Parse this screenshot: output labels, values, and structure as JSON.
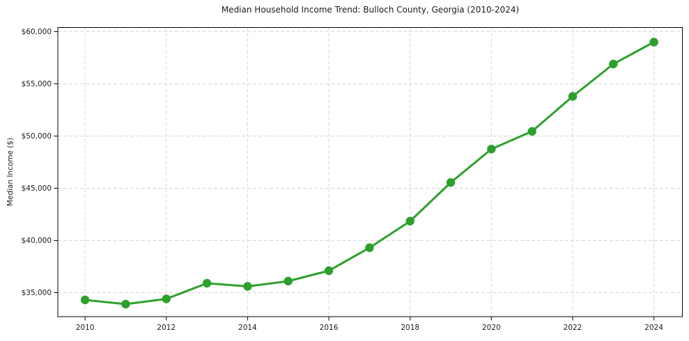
{
  "chart_data": {
    "type": "line",
    "title": "Median Household Income Trend: Bulloch County, Georgia (2010-2024)",
    "ylabel": "Median Income ($)",
    "xlabel": "",
    "x": [
      2010,
      2011,
      2012,
      2013,
      2014,
      2015,
      2016,
      2017,
      2018,
      2019,
      2020,
      2021,
      2022,
      2023,
      2024
    ],
    "series": [
      {
        "name": "Median Household Income",
        "color": "#2ca02c",
        "values": [
          34300,
          33900,
          34400,
          35900,
          35600,
          36100,
          37100,
          39300,
          41850,
          45550,
          48750,
          50450,
          53800,
          56900,
          59000
        ]
      }
    ],
    "x_ticks": [
      2010,
      2012,
      2014,
      2016,
      2018,
      2020,
      2022,
      2024
    ],
    "x_tick_labels": [
      "2010",
      "2012",
      "2014",
      "2016",
      "2018",
      "2020",
      "2022",
      "2024"
    ],
    "y_ticks": [
      35000,
      40000,
      45000,
      50000,
      55000,
      60000
    ],
    "y_tick_labels": [
      "$35,000",
      "$40,000",
      "$45,000",
      "$50,000",
      "$55,000",
      "$60,000"
    ],
    "xlim": [
      2009.33,
      2024.7
    ],
    "ylim": [
      32700,
      60400
    ],
    "grid": true,
    "grid_style": "dashed",
    "legend_position": "none",
    "marker": "circle",
    "colors": {
      "line": "#2ca02c",
      "grid": "#d6d6d6",
      "spine": "#000000",
      "text": "#1a1a1a",
      "background": "#ffffff"
    }
  }
}
